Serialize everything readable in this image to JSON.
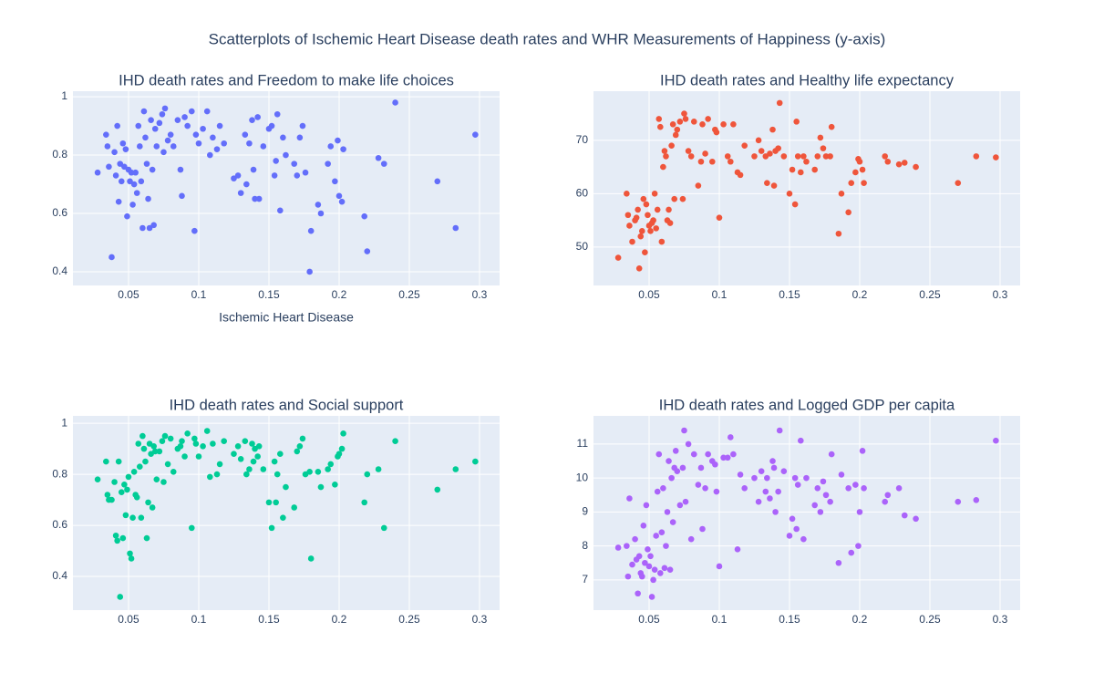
{
  "title": "Scatterplots of Ischemic Heart Disease death rates and WHR Measurements of Happiness (y-axis)",
  "chart_data": [
    {
      "type": "scatter",
      "title": "IHD death rates and Freedom to make life choices",
      "xlabel": "Ischemic Heart Disease",
      "color": "#636efa",
      "grid": true,
      "xlim": [
        0.0104,
        0.3143
      ],
      "ylim": [
        0.353,
        1.019
      ],
      "xticks": [
        0.05,
        0.1,
        0.15,
        0.2,
        0.25,
        0.3
      ],
      "yticks": [
        0.4,
        0.6,
        0.8,
        1
      ],
      "x": [
        0.028,
        0.034,
        0.035,
        0.036,
        0.038,
        0.04,
        0.041,
        0.042,
        0.043,
        0.044,
        0.045,
        0.046,
        0.047,
        0.048,
        0.049,
        0.05,
        0.051,
        0.052,
        0.053,
        0.054,
        0.055,
        0.056,
        0.057,
        0.058,
        0.059,
        0.06,
        0.061,
        0.062,
        0.063,
        0.064,
        0.065,
        0.066,
        0.067,
        0.068,
        0.069,
        0.07,
        0.072,
        0.074,
        0.075,
        0.076,
        0.078,
        0.08,
        0.082,
        0.085,
        0.087,
        0.088,
        0.09,
        0.092,
        0.095,
        0.097,
        0.098,
        0.1,
        0.103,
        0.106,
        0.108,
        0.11,
        0.113,
        0.115,
        0.118,
        0.125,
        0.128,
        0.13,
        0.133,
        0.134,
        0.136,
        0.138,
        0.139,
        0.14,
        0.142,
        0.143,
        0.146,
        0.15,
        0.152,
        0.154,
        0.155,
        0.156,
        0.158,
        0.16,
        0.162,
        0.168,
        0.17,
        0.172,
        0.174,
        0.176,
        0.179,
        0.18,
        0.185,
        0.187,
        0.192,
        0.194,
        0.197,
        0.199,
        0.2,
        0.202,
        0.203,
        0.218,
        0.22,
        0.228,
        0.232,
        0.24,
        0.27,
        0.283,
        0.297
      ],
      "values": [
        0.74,
        0.87,
        0.83,
        0.76,
        0.45,
        0.81,
        0.73,
        0.9,
        0.64,
        0.77,
        0.71,
        0.84,
        0.76,
        0.82,
        0.59,
        0.75,
        0.71,
        0.74,
        0.63,
        0.7,
        0.74,
        0.67,
        0.9,
        0.83,
        0.71,
        0.55,
        0.95,
        0.86,
        0.77,
        0.65,
        0.55,
        0.92,
        0.75,
        0.56,
        0.89,
        0.83,
        0.91,
        0.94,
        0.81,
        0.96,
        0.85,
        0.87,
        0.83,
        0.92,
        0.75,
        0.66,
        0.93,
        0.9,
        0.95,
        0.54,
        0.87,
        0.84,
        0.89,
        0.95,
        0.8,
        0.86,
        0.82,
        0.9,
        0.84,
        0.72,
        0.73,
        0.67,
        0.87,
        0.7,
        0.84,
        0.92,
        0.75,
        0.65,
        0.93,
        0.65,
        0.83,
        0.89,
        0.9,
        0.73,
        0.78,
        0.94,
        0.61,
        0.86,
        0.8,
        0.77,
        0.73,
        0.86,
        0.9,
        0.74,
        0.4,
        0.54,
        0.63,
        0.6,
        0.77,
        0.83,
        0.71,
        0.85,
        0.66,
        0.64,
        0.82,
        0.59,
        0.47,
        0.79,
        0.77,
        0.98,
        0.71,
        0.55,
        0.87
      ]
    },
    {
      "type": "scatter",
      "title": "IHD death rates and Healthy life expectancy",
      "color": "#EF553B",
      "grid": true,
      "xlim": [
        0.0104,
        0.3143
      ],
      "ylim": [
        42.8,
        79.2
      ],
      "xticks": [
        0.05,
        0.1,
        0.15,
        0.2,
        0.25,
        0.3
      ],
      "yticks": [
        50,
        60,
        70
      ],
      "x": [
        0.028,
        0.034,
        0.035,
        0.036,
        0.038,
        0.04,
        0.041,
        0.042,
        0.043,
        0.044,
        0.045,
        0.046,
        0.047,
        0.048,
        0.049,
        0.05,
        0.051,
        0.052,
        0.053,
        0.054,
        0.055,
        0.056,
        0.057,
        0.058,
        0.059,
        0.06,
        0.061,
        0.062,
        0.063,
        0.064,
        0.065,
        0.066,
        0.067,
        0.068,
        0.069,
        0.07,
        0.072,
        0.074,
        0.075,
        0.076,
        0.078,
        0.08,
        0.082,
        0.085,
        0.087,
        0.088,
        0.09,
        0.092,
        0.095,
        0.097,
        0.098,
        0.1,
        0.103,
        0.106,
        0.108,
        0.11,
        0.113,
        0.115,
        0.118,
        0.125,
        0.128,
        0.13,
        0.133,
        0.134,
        0.136,
        0.138,
        0.139,
        0.14,
        0.142,
        0.143,
        0.146,
        0.15,
        0.152,
        0.154,
        0.155,
        0.156,
        0.158,
        0.16,
        0.162,
        0.168,
        0.17,
        0.172,
        0.174,
        0.176,
        0.179,
        0.18,
        0.185,
        0.187,
        0.192,
        0.194,
        0.197,
        0.199,
        0.2,
        0.202,
        0.203,
        0.218,
        0.22,
        0.228,
        0.232,
        0.24,
        0.27,
        0.283,
        0.297
      ],
      "values": [
        48,
        60,
        56,
        54,
        51,
        55,
        55.5,
        57,
        46,
        52,
        53,
        59,
        49,
        58,
        56,
        54,
        53,
        54.5,
        55,
        60,
        53.5,
        57,
        74,
        72.5,
        51,
        65,
        68,
        67,
        55,
        57,
        54.5,
        69,
        73,
        59,
        71,
        72,
        73.5,
        59,
        75,
        74,
        68,
        67,
        73.5,
        61.5,
        66,
        73,
        67.5,
        74,
        66,
        72,
        71.5,
        55.5,
        73,
        67,
        66,
        73,
        64,
        63.5,
        69,
        67,
        70,
        68,
        67,
        62,
        67.5,
        72,
        61.5,
        68,
        68.5,
        77,
        67,
        60,
        64.5,
        58,
        73.5,
        67,
        64,
        67,
        66,
        64.5,
        67,
        70.5,
        68.5,
        67,
        67,
        72.5,
        52.5,
        60,
        56.5,
        62,
        64,
        66.5,
        66,
        64.5,
        62,
        67,
        66,
        65.5,
        65.8,
        65,
        62,
        67,
        66.8
      ]
    },
    {
      "type": "scatter",
      "title": "IHD death rates and Social support",
      "color": "#00cc96",
      "grid": true,
      "xlim": [
        0.0104,
        0.3143
      ],
      "ylim": [
        0.268,
        1.029
      ],
      "xticks": [
        0.05,
        0.1,
        0.15,
        0.2,
        0.25,
        0.3
      ],
      "yticks": [
        0.4,
        0.6,
        0.8,
        1
      ],
      "x": [
        0.028,
        0.034,
        0.035,
        0.036,
        0.038,
        0.04,
        0.041,
        0.042,
        0.043,
        0.044,
        0.045,
        0.046,
        0.047,
        0.048,
        0.049,
        0.05,
        0.051,
        0.052,
        0.053,
        0.054,
        0.055,
        0.056,
        0.057,
        0.058,
        0.059,
        0.06,
        0.061,
        0.062,
        0.063,
        0.064,
        0.065,
        0.066,
        0.067,
        0.068,
        0.069,
        0.07,
        0.072,
        0.074,
        0.075,
        0.076,
        0.078,
        0.08,
        0.082,
        0.085,
        0.087,
        0.088,
        0.09,
        0.092,
        0.095,
        0.097,
        0.098,
        0.1,
        0.103,
        0.106,
        0.108,
        0.11,
        0.113,
        0.115,
        0.118,
        0.125,
        0.128,
        0.13,
        0.133,
        0.134,
        0.136,
        0.138,
        0.139,
        0.14,
        0.142,
        0.143,
        0.146,
        0.15,
        0.152,
        0.154,
        0.155,
        0.156,
        0.158,
        0.16,
        0.162,
        0.168,
        0.17,
        0.172,
        0.174,
        0.176,
        0.179,
        0.18,
        0.185,
        0.187,
        0.192,
        0.194,
        0.197,
        0.199,
        0.2,
        0.202,
        0.203,
        0.218,
        0.22,
        0.228,
        0.232,
        0.24,
        0.27,
        0.283,
        0.297
      ],
      "values": [
        0.78,
        0.85,
        0.72,
        0.7,
        0.7,
        0.77,
        0.56,
        0.54,
        0.85,
        0.32,
        0.73,
        0.55,
        0.76,
        0.64,
        0.74,
        0.79,
        0.49,
        0.47,
        0.63,
        0.81,
        0.72,
        0.71,
        0.92,
        0.83,
        0.63,
        0.95,
        0.9,
        0.85,
        0.55,
        0.69,
        0.92,
        0.88,
        0.67,
        0.91,
        0.89,
        0.78,
        0.89,
        0.93,
        0.77,
        0.95,
        0.84,
        0.94,
        0.81,
        0.9,
        0.91,
        0.93,
        0.87,
        0.96,
        0.59,
        0.94,
        0.92,
        0.87,
        0.91,
        0.97,
        0.79,
        0.92,
        0.8,
        0.84,
        0.93,
        0.88,
        0.91,
        0.86,
        0.93,
        0.8,
        0.82,
        0.92,
        0.85,
        0.9,
        0.87,
        0.91,
        0.82,
        0.69,
        0.59,
        0.85,
        0.69,
        0.8,
        0.88,
        0.63,
        0.75,
        0.67,
        0.89,
        0.91,
        0.94,
        0.8,
        0.81,
        0.47,
        0.81,
        0.75,
        0.82,
        0.84,
        0.76,
        0.87,
        0.88,
        0.9,
        0.96,
        0.69,
        0.8,
        0.82,
        0.59,
        0.93,
        0.74,
        0.82,
        0.85
      ]
    },
    {
      "type": "scatter",
      "title": "IHD death rates and Logged GDP per capita",
      "color": "#ab63fa",
      "grid": true,
      "xlim": [
        0.0104,
        0.3143
      ],
      "ylim": [
        6.11,
        11.83
      ],
      "xticks": [
        0.05,
        0.1,
        0.15,
        0.2,
        0.25,
        0.3
      ],
      "yticks": [
        7,
        8,
        9,
        10,
        11
      ],
      "x": [
        0.028,
        0.034,
        0.035,
        0.036,
        0.038,
        0.04,
        0.041,
        0.042,
        0.043,
        0.044,
        0.045,
        0.046,
        0.047,
        0.048,
        0.049,
        0.05,
        0.051,
        0.052,
        0.053,
        0.054,
        0.055,
        0.056,
        0.057,
        0.058,
        0.059,
        0.06,
        0.061,
        0.062,
        0.063,
        0.064,
        0.065,
        0.066,
        0.067,
        0.068,
        0.069,
        0.07,
        0.072,
        0.074,
        0.075,
        0.076,
        0.078,
        0.08,
        0.082,
        0.085,
        0.087,
        0.088,
        0.09,
        0.092,
        0.095,
        0.097,
        0.098,
        0.1,
        0.103,
        0.106,
        0.108,
        0.11,
        0.113,
        0.115,
        0.118,
        0.125,
        0.128,
        0.13,
        0.133,
        0.134,
        0.136,
        0.138,
        0.139,
        0.14,
        0.142,
        0.143,
        0.146,
        0.15,
        0.152,
        0.154,
        0.155,
        0.156,
        0.158,
        0.16,
        0.162,
        0.168,
        0.17,
        0.172,
        0.174,
        0.176,
        0.179,
        0.18,
        0.185,
        0.187,
        0.192,
        0.194,
        0.197,
        0.199,
        0.2,
        0.202,
        0.203,
        0.218,
        0.22,
        0.228,
        0.232,
        0.24,
        0.27,
        0.283,
        0.297
      ],
      "values": [
        7.95,
        8.0,
        7.1,
        9.4,
        7.45,
        8.2,
        7.6,
        6.6,
        7.7,
        7.2,
        7.1,
        8.6,
        7.5,
        9.2,
        7.9,
        7.4,
        7.7,
        6.5,
        7.0,
        7.3,
        8.3,
        9.6,
        10.7,
        7.2,
        8.4,
        9.7,
        7.35,
        8.0,
        9.0,
        10.5,
        7.3,
        10.0,
        8.7,
        10.3,
        10.8,
        10.2,
        9.2,
        10.3,
        11.4,
        9.3,
        11.0,
        8.2,
        10.7,
        9.8,
        10.3,
        8.5,
        9.7,
        10.7,
        10.5,
        10.4,
        9.6,
        7.4,
        10.6,
        10.6,
        11.2,
        10.7,
        7.9,
        10.1,
        9.7,
        10.0,
        9.3,
        10.2,
        9.6,
        10.0,
        9.4,
        10.5,
        10.3,
        9.0,
        9.6,
        11.4,
        10.2,
        8.3,
        8.8,
        10.0,
        8.5,
        9.8,
        11.1,
        8.2,
        10.0,
        9.2,
        9.7,
        9.0,
        9.9,
        9.5,
        9.3,
        10.7,
        7.5,
        10.1,
        9.7,
        7.8,
        9.8,
        8.0,
        9.0,
        10.8,
        9.7,
        9.3,
        9.5,
        9.7,
        8.9,
        8.8,
        9.3,
        9.35,
        11.1
      ]
    }
  ]
}
